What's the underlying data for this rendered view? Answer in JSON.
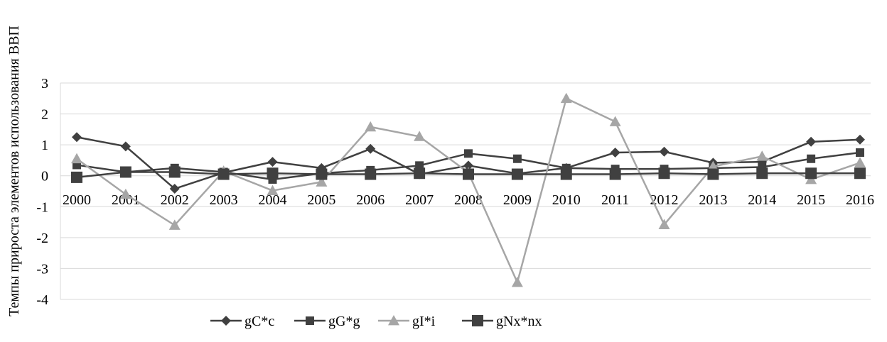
{
  "chart_data": {
    "type": "line",
    "ylabel": "Темпы прироста элементов использования ВВП",
    "xlabel": "",
    "title": "",
    "ylim": [
      -4,
      3
    ],
    "yticks": [
      3,
      2,
      1,
      0,
      -1,
      -2,
      -3,
      -4
    ],
    "grid": "horizontal",
    "legend_position": "bottom",
    "categories": [
      "2000",
      "2001",
      "2002",
      "2003",
      "2004",
      "2005",
      "2006",
      "2007",
      "2008",
      "2009",
      "2010",
      "2011",
      "2012",
      "2013",
      "2014",
      "2015",
      "2016"
    ],
    "series": [
      {
        "name": "gC*c",
        "marker": "diamond",
        "color": "#404040",
        "values": [
          1.25,
          0.95,
          -0.42,
          0.1,
          0.45,
          0.25,
          0.87,
          0.05,
          0.33,
          0.07,
          0.25,
          0.75,
          0.78,
          0.42,
          0.45,
          1.1,
          1.17
        ]
      },
      {
        "name": "gG*g",
        "marker": "square",
        "color": "#404040",
        "values": [
          0.35,
          0.12,
          0.25,
          0.12,
          -0.12,
          0.08,
          0.18,
          0.33,
          0.72,
          0.55,
          0.25,
          0.22,
          0.22,
          0.25,
          0.28,
          0.55,
          0.75
        ]
      },
      {
        "name": "gI*i",
        "marker": "triangle",
        "color": "#a6a6a6",
        "values": [
          0.55,
          -0.6,
          -1.6,
          0.15,
          -0.48,
          -0.2,
          1.58,
          1.27,
          0.1,
          -3.45,
          2.5,
          1.75,
          -1.58,
          0.3,
          0.63,
          -0.12,
          0.42
        ]
      },
      {
        "name": "gNx*nx",
        "marker": "square-large",
        "color": "#404040",
        "values": [
          -0.05,
          0.12,
          0.12,
          0.05,
          0.08,
          0.05,
          0.05,
          0.08,
          0.05,
          0.05,
          0.05,
          0.05,
          0.08,
          0.05,
          0.08,
          0.08,
          0.08
        ]
      }
    ]
  }
}
